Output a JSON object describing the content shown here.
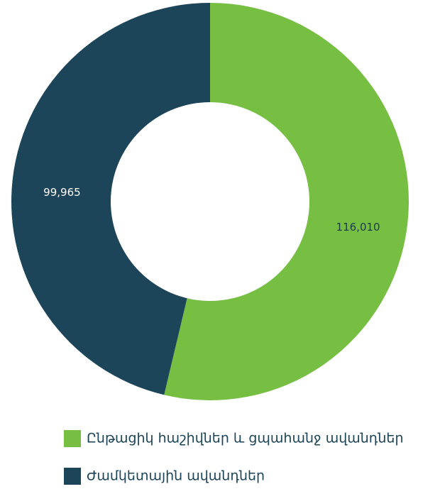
{
  "chart_data": {
    "type": "donut",
    "categories": [
      "Ընթացիկ հաշիվներ և ցպահանջ ավանդներ",
      "Ժամկետային ավանդներ"
    ],
    "values": [
      116010,
      99965
    ],
    "value_labels": [
      "116,010",
      "99,965"
    ],
    "colors": [
      "#76bf43",
      "#1c4559"
    ]
  }
}
